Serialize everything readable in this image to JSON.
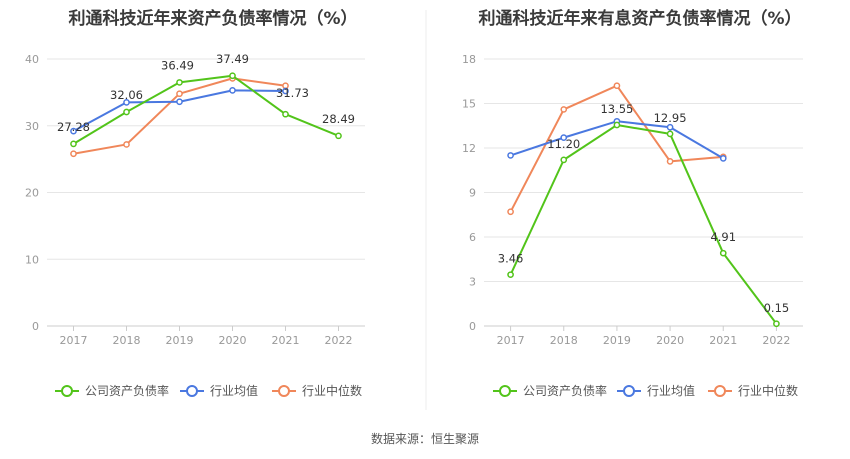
{
  "source": "数据来源：恒生聚源",
  "chart_data": [
    {
      "type": "line",
      "title": "利通科技近年来资产负债率情况（%）",
      "categories": [
        "2017",
        "2018",
        "2019",
        "2020",
        "2021",
        "2022"
      ],
      "ylim": [
        0,
        40
      ],
      "yticks": [
        0,
        10,
        20,
        30,
        40
      ],
      "grid": true,
      "legend_position": "bottom",
      "series": [
        {
          "name": "公司资产负债率",
          "color": "#52c41a",
          "values": [
            27.28,
            32.06,
            36.49,
            37.49,
            31.73,
            28.49
          ],
          "labels": [
            "27.28",
            "32.06",
            "36.49",
            "37.49",
            "31.73",
            "28.49"
          ]
        },
        {
          "name": "行业均值",
          "color": "#4a78e0",
          "values": [
            29.2,
            33.5,
            33.6,
            35.3,
            35.2,
            null
          ],
          "labels": null
        },
        {
          "name": "行业中位数",
          "color": "#f0875a",
          "values": [
            25.8,
            27.2,
            34.8,
            37.1,
            36.0,
            null
          ],
          "labels": null
        }
      ]
    },
    {
      "type": "line",
      "title": "利通科技近年来有息资产负债率情况（%）",
      "categories": [
        "2017",
        "2018",
        "2019",
        "2020",
        "2021",
        "2022"
      ],
      "ylim": [
        0,
        18
      ],
      "yticks": [
        0,
        3,
        6,
        9,
        12,
        15,
        18
      ],
      "grid": true,
      "legend_position": "bottom",
      "series": [
        {
          "name": "公司资产负债率",
          "color": "#52c41a",
          "values": [
            3.46,
            11.2,
            13.55,
            12.95,
            4.91,
            0.15
          ],
          "labels": [
            "3.46",
            "11.20",
            "13.55",
            "12.95",
            "4.91",
            "0.15"
          ]
        },
        {
          "name": "行业均值",
          "color": "#4a78e0",
          "values": [
            11.5,
            12.7,
            13.8,
            13.4,
            11.3,
            null
          ],
          "labels": null
        },
        {
          "name": "行业中位数",
          "color": "#f0875a",
          "values": [
            7.7,
            14.6,
            16.2,
            11.1,
            11.4,
            null
          ],
          "labels": null
        }
      ]
    }
  ]
}
